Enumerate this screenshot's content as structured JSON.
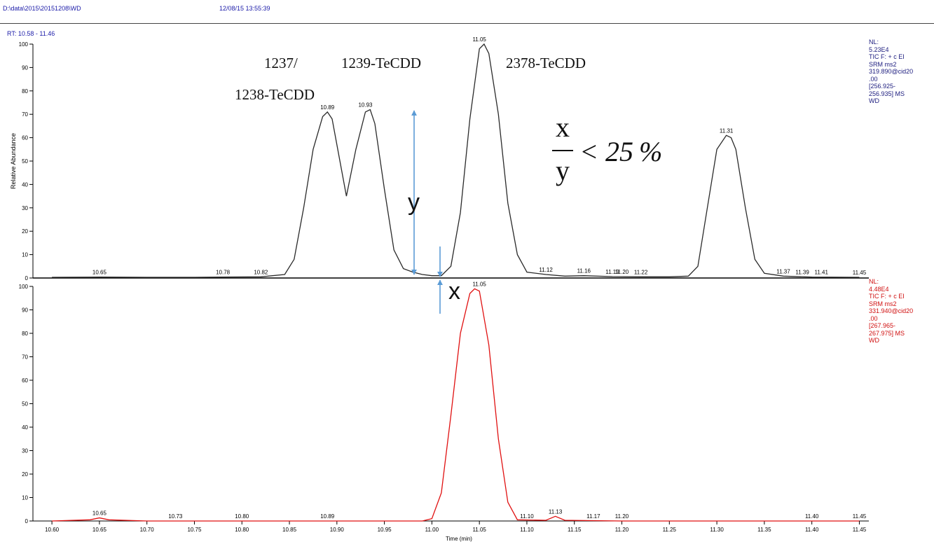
{
  "header": {
    "path": "D:\\data\\2015\\20151208\\WD",
    "datetime": "12/08/15 13:55:39",
    "rt_range": "RT: 10.58 - 11.46"
  },
  "colors": {
    "top_trace": "#2a2a2a",
    "bottom_trace": "#e01010",
    "arrow": "#5b9bd5",
    "header_text": "#1a1aa8"
  },
  "panels": {
    "top": {
      "info_lines": [
        "NL:",
        "5.23E4",
        "TIC F: + c EI",
        "SRM ms2",
        "319.890@cid20",
        ".00",
        "[256.925-",
        "256.935] MS",
        "WD"
      ]
    },
    "bottom": {
      "info_lines": [
        "NL:",
        "4.48E4",
        "TIC F: + c EI",
        "SRM ms2",
        "331.940@cid20",
        ".00",
        "[267.965-",
        "267.975] MS",
        "WD"
      ]
    }
  },
  "annotations": {
    "label_1237": "1237/",
    "label_1238": "1238-TeCDD",
    "label_1239": "1239-TeCDD",
    "label_2378": "2378-TeCDD",
    "y_label": "y",
    "x_label": "x",
    "formula_numerator": "x",
    "formula_denominator": "y",
    "formula_rhs": "< 25 %"
  },
  "chart_data": [
    {
      "type": "line",
      "title": "",
      "ylabel": "Relative Abundance",
      "xlabel": "",
      "xlim": [
        10.58,
        11.46
      ],
      "ylim": [
        0,
        100
      ],
      "yticks": [
        0,
        10,
        20,
        30,
        40,
        50,
        60,
        70,
        80,
        90,
        100
      ],
      "series": [
        {
          "x": [
            10.6,
            10.65,
            10.7,
            10.75,
            10.78,
            10.82,
            10.845,
            10.855,
            10.865,
            10.875,
            10.885,
            10.89,
            10.895,
            10.905,
            10.91,
            10.92,
            10.93,
            10.935,
            10.94,
            10.95,
            10.96,
            10.97,
            10.98,
            10.99,
            11.0,
            11.01,
            11.02,
            11.03,
            11.04,
            11.05,
            11.055,
            11.06,
            11.07,
            11.08,
            11.09,
            11.1,
            11.12,
            11.14,
            11.16,
            11.19,
            11.22,
            11.25,
            11.27,
            11.28,
            11.29,
            11.3,
            11.31,
            11.315,
            11.32,
            11.33,
            11.34,
            11.35,
            11.37,
            11.4,
            11.45
          ],
          "y": [
            0.3,
            0.4,
            0.3,
            0.3,
            0.4,
            0.5,
            1.5,
            8,
            30,
            55,
            69,
            71,
            68,
            46,
            35,
            55,
            71,
            72,
            66,
            38,
            12,
            4,
            2.5,
            1.5,
            1,
            1,
            5,
            28,
            68,
            98,
            100,
            96,
            70,
            32,
            10,
            2.5,
            1.5,
            0.8,
            1,
            0.6,
            0.5,
            0.5,
            0.8,
            5,
            30,
            55,
            61,
            60,
            55,
            30,
            8,
            2,
            0.8,
            0.4,
            0.3
          ]
        }
      ],
      "peak_labels": [
        {
          "x": 10.65,
          "y": 0.4,
          "text": "10.65"
        },
        {
          "x": 10.78,
          "y": 0.4,
          "text": "10.78"
        },
        {
          "x": 10.82,
          "y": 0.5,
          "text": "10.82"
        },
        {
          "x": 10.89,
          "y": 71,
          "text": "10.89"
        },
        {
          "x": 10.93,
          "y": 72,
          "text": "10.93"
        },
        {
          "x": 11.05,
          "y": 100,
          "text": "11.05"
        },
        {
          "x": 11.12,
          "y": 1.5,
          "text": "11.12"
        },
        {
          "x": 11.16,
          "y": 1,
          "text": "11.16"
        },
        {
          "x": 11.19,
          "y": 0.6,
          "text": "11.19"
        },
        {
          "x": 11.2,
          "y": 0.6,
          "text": "11.20"
        },
        {
          "x": 11.22,
          "y": 0.5,
          "text": "11.22"
        },
        {
          "x": 11.31,
          "y": 61,
          "text": "11.31"
        },
        {
          "x": 11.37,
          "y": 0.8,
          "text": "11.37"
        },
        {
          "x": 11.39,
          "y": 0.5,
          "text": "11.39"
        },
        {
          "x": 11.41,
          "y": 0.4,
          "text": "11.41"
        },
        {
          "x": 11.45,
          "y": 0.3,
          "text": "11.45"
        }
      ]
    },
    {
      "type": "line",
      "title": "",
      "ylabel": "",
      "xlabel": "Time (min)",
      "xlim": [
        10.58,
        11.46
      ],
      "ylim": [
        0,
        100
      ],
      "yticks": [
        0,
        10,
        20,
        30,
        40,
        50,
        60,
        70,
        80,
        90,
        100
      ],
      "xticks": [
        "10.60",
        "10.65",
        "10.70",
        "10.75",
        "10.80",
        "10.85",
        "10.90",
        "10.95",
        "11.00",
        "11.05",
        "11.10",
        "11.15",
        "11.20",
        "11.25",
        "11.30",
        "11.35",
        "11.40",
        "11.45"
      ],
      "series": [
        {
          "x": [
            10.6,
            10.64,
            10.65,
            10.66,
            10.7,
            10.8,
            10.9,
            10.99,
            11.0,
            11.01,
            11.02,
            11.03,
            11.04,
            11.045,
            11.05,
            11.06,
            11.07,
            11.08,
            11.09,
            11.12,
            11.13,
            11.14,
            11.2,
            11.4,
            11.45
          ],
          "y": [
            0,
            0.5,
            1.3,
            0.5,
            0,
            0,
            0,
            0,
            1,
            12,
            45,
            80,
            97,
            99,
            98,
            75,
            35,
            8,
            0.5,
            0.3,
            2,
            0.3,
            0,
            0,
            0
          ]
        }
      ],
      "peak_labels": [
        {
          "x": 10.65,
          "y": 1.3,
          "text": "10.65"
        },
        {
          "x": 10.73,
          "y": 0,
          "text": "10.73"
        },
        {
          "x": 10.8,
          "y": 0,
          "text": "10.80"
        },
        {
          "x": 10.89,
          "y": 0,
          "text": "10.89"
        },
        {
          "x": 11.05,
          "y": 99,
          "text": "11.05"
        },
        {
          "x": 11.1,
          "y": 0,
          "text": "11.10"
        },
        {
          "x": 11.13,
          "y": 2,
          "text": "11.13"
        },
        {
          "x": 11.17,
          "y": 0,
          "text": "11.17"
        },
        {
          "x": 11.2,
          "y": 0,
          "text": "11.20"
        },
        {
          "x": 11.4,
          "y": 0,
          "text": "11.40"
        },
        {
          "x": 11.45,
          "y": 0,
          "text": "11.45"
        }
      ]
    }
  ]
}
